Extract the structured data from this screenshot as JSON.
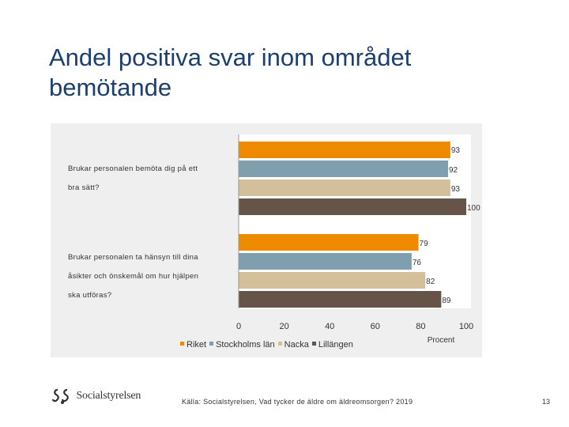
{
  "page": {
    "title": "Andel positiva svar inom området bemötande",
    "source": "Källa: Socialstyrelsen, Vad tycker de äldre om äldreomsorgen? 2019",
    "page_number": "13",
    "logo_text": "Socialstyrelsen"
  },
  "chart_data": {
    "type": "bar",
    "orientation": "horizontal",
    "categories": [
      "Brukar personalen bemöta dig på ett bra sätt?",
      "Brukar personalen ta hänsyn till dina åsikter och önskemål om hur hjälpen ska utföras?"
    ],
    "category_lines": [
      [
        "Brukar personalen bemöta dig på ett",
        "bra sätt?"
      ],
      [
        "Brukar personalen ta hänsyn till dina",
        "åsikter och önskemål om hur hjälpen",
        "ska utföras?"
      ]
    ],
    "series": [
      {
        "name": "Riket",
        "color": "#ee8a00",
        "values": [
          93,
          79
        ]
      },
      {
        "name": "Stockholms län",
        "color": "#7f9fae",
        "values": [
          92,
          76
        ]
      },
      {
        "name": "Nacka",
        "color": "#d3c09a",
        "values": [
          93,
          82
        ]
      },
      {
        "name": "Lillängen",
        "color": "#665449",
        "values": [
          100,
          89
        ]
      }
    ],
    "xlim": [
      0,
      100
    ],
    "xticks": [
      0,
      20,
      40,
      60,
      80,
      100
    ],
    "xlabel": "Procent",
    "ylabel": "",
    "title": "",
    "grid": false,
    "legend_position": "bottom"
  }
}
